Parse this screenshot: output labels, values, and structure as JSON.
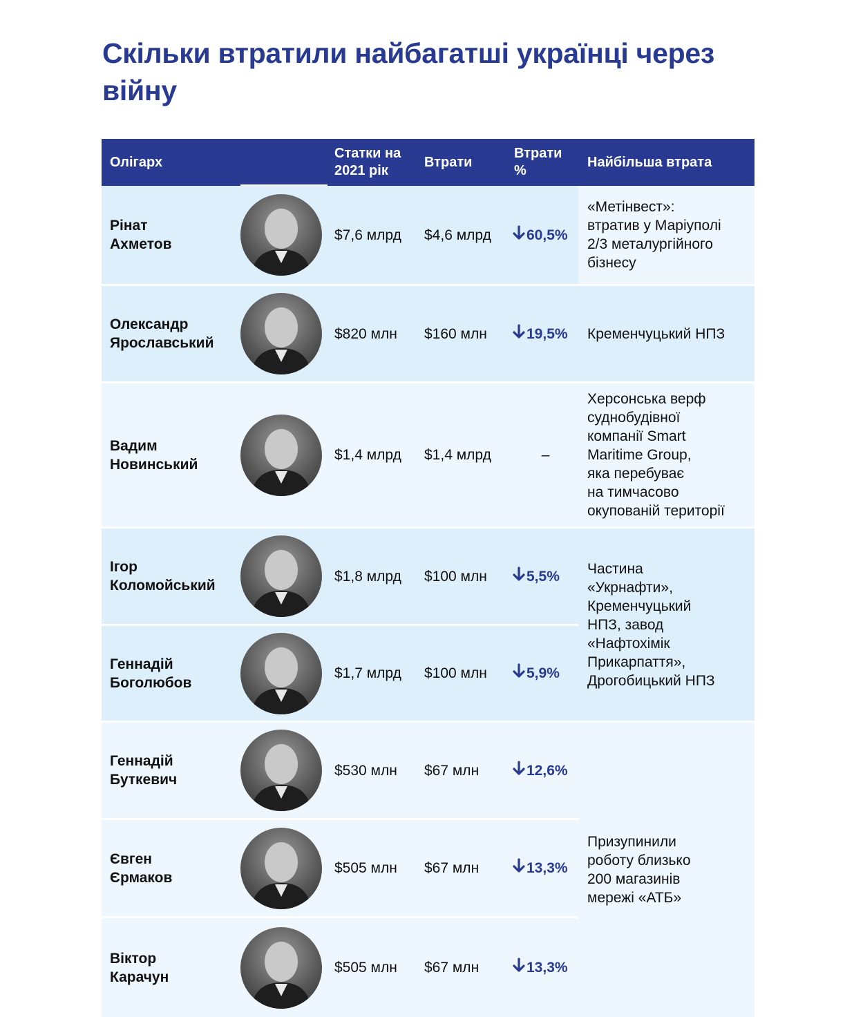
{
  "title": "Скільки втратили найбагатші українці через війну",
  "header": {
    "oligarch": "Олігарх",
    "worth": "Статки на 2021 рік",
    "losses": "Втрати",
    "losses_pct": "Втрати %",
    "biggest_loss": "Найбільша втрата"
  },
  "colors": {
    "accent": "#283a91",
    "row_blue": "#ddeffb",
    "row_pale": "#eef7fd"
  },
  "rows": [
    {
      "name": "Рінат\nАхметов",
      "photo": "portrait-photo",
      "worth": "$7,6 млрд",
      "loss": "$4,6 млрд",
      "pct": "60,5%",
      "pct_icon": "arrow-down-icon"
    },
    {
      "name": "Олександр\nЯрославський",
      "photo": "portrait-photo",
      "worth": "$820 млн",
      "loss": "$160 млн",
      "pct": "19,5%",
      "pct_icon": "arrow-down-icon"
    },
    {
      "name": "Вадим\nНовинський",
      "photo": "portrait-photo",
      "worth": "$1,4 млрд",
      "loss": "$1,4 млрд",
      "pct": "–"
    },
    {
      "name": "Ігор\nКоломойський",
      "photo": "portrait-photo",
      "worth": "$1,8 млрд",
      "loss": "$100 млн",
      "pct": "5,5%",
      "pct_icon": "arrow-down-icon"
    },
    {
      "name": "Геннадій\nБоголюбов",
      "photo": "portrait-photo",
      "worth": "$1,7 млрд",
      "loss": "$100 млн",
      "pct": "5,9%",
      "pct_icon": "arrow-down-icon"
    },
    {
      "name": "Геннадій\nБуткевич",
      "photo": "portrait-photo",
      "worth": "$530 млн",
      "loss": "$67 млн",
      "pct": "12,6%",
      "pct_icon": "arrow-down-icon"
    },
    {
      "name": "Євген\nЄрмаков",
      "photo": "portrait-photo",
      "worth": "$505 млн",
      "loss": "$67 млн",
      "pct": "13,3%",
      "pct_icon": "arrow-down-icon"
    },
    {
      "name": "Віктор\nКарачун",
      "photo": "portrait-photo",
      "worth": "$505 млн",
      "loss": "$67 млн",
      "pct": "13,3%",
      "pct_icon": "arrow-down-icon"
    }
  ],
  "biggest_losses": [
    "«Метінвест»:\nвтратив у Маріуполі\n2/3 металургійного\nбізнесу",
    "Кременчуцький НПЗ",
    "Херсонська верф\nсуднобудівної\nкомпанії Smart\nMaritime Group,\nяка перебуває\nна тимчасово\nокупованій території",
    "Частина\n«Укрнафти»,\nКременчуцький\nНПЗ, завод\n«Нафтохімік\nПрикарпаття»,\nДрогобицький НПЗ",
    "Призупинили\nроботу близько\n200 магазинів\nмережі «АТБ»"
  ]
}
